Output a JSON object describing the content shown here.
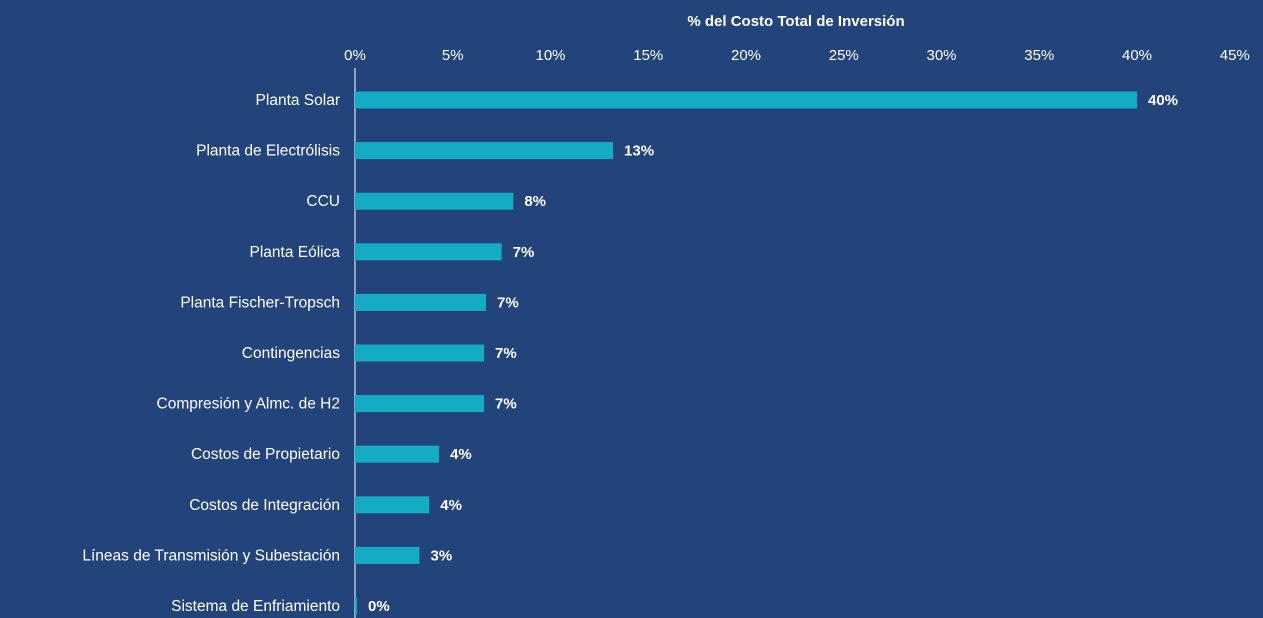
{
  "chart_data": {
    "type": "bar",
    "orientation": "horizontal",
    "xlabel": "% del Costo Total de Inversión",
    "ylabel": "",
    "xlim": [
      0,
      45
    ],
    "x_ticks": [
      0,
      5,
      10,
      15,
      20,
      25,
      30,
      35,
      40,
      45
    ],
    "x_tick_labels": [
      "0%",
      "5%",
      "10%",
      "15%",
      "20%",
      "25%",
      "30%",
      "35%",
      "40%",
      "45%"
    ],
    "x_axis_position": "top",
    "grid": false,
    "legend": "none",
    "categories": [
      "Planta Solar",
      "Planta de Electrólisis",
      "CCU",
      "Planta Eólica",
      "Planta Fischer-Tropsch",
      "Contingencias",
      "Compresión y Almc. de H2",
      "Costos de Propietario",
      "Costos de Integración",
      "Líneas de Transmisión y Subestación",
      "Sistema de Enfriamiento"
    ],
    "values": [
      40,
      13.2,
      8.1,
      7.5,
      6.7,
      6.6,
      6.6,
      4.3,
      3.8,
      3.3,
      0.1
    ],
    "data_labels": [
      "40%",
      "13%",
      "8%",
      "7%",
      "7%",
      "7%",
      "7%",
      "4%",
      "4%",
      "3%",
      "0%"
    ],
    "colors": {
      "background": "#22447a",
      "bar": "#14abc5",
      "text": "#ffffff",
      "axis": "#ffffff"
    }
  }
}
